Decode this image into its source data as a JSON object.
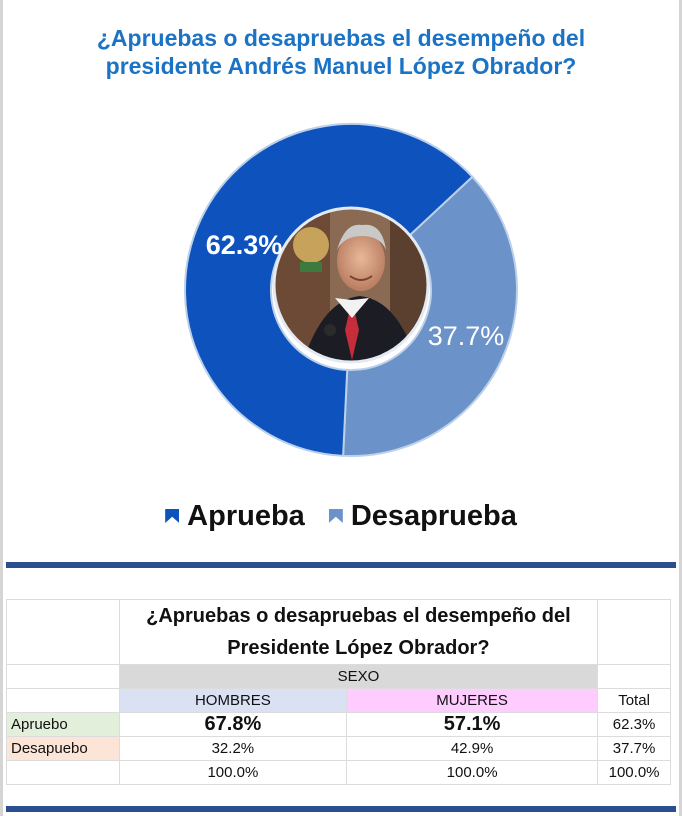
{
  "title": "¿Apruebas o desapruebas el desempeño del presidente Andrés Manuel López Obrador?",
  "chart_data": {
    "type": "pie",
    "variant": "donut",
    "categories": [
      "Aprueba",
      "Desaprueba"
    ],
    "values": [
      62.3,
      37.7
    ],
    "value_labels": [
      "62.3%",
      "37.7%"
    ],
    "colors": [
      "#0d52bd",
      "#6b93c9"
    ],
    "legend_position": "bottom",
    "center_image": "president-photo"
  },
  "legend": {
    "items": [
      {
        "label": "Aprueba",
        "color": "#0d52bd"
      },
      {
        "label": "Desaprueba",
        "color": "#6b93c9"
      }
    ]
  },
  "table": {
    "question": "¿Apruebas o desapruebas el desempeño del Presidente López Obrador?",
    "group_header": "SEXO",
    "columns": [
      "HOMBRES",
      "MUJERES",
      "Total"
    ],
    "rows": [
      {
        "label": "Apruebo",
        "values": [
          "67.8%",
          "57.1%",
          "62.3%"
        ]
      },
      {
        "label": "Desapuebo",
        "values": [
          "32.2%",
          "42.9%",
          "37.7%"
        ]
      },
      {
        "label": "",
        "values": [
          "100.0%",
          "100.0%",
          "100.0%"
        ]
      }
    ]
  },
  "colors": {
    "title": "#1a73c4",
    "separator": "#2b4f8e",
    "sexo_bg": "#d9d9d9",
    "hombres_bg": "#d9e1f2",
    "mujeres_bg": "#ffccff",
    "apruebo_bg": "#e2efda",
    "desaprueba_bg": "#fce4d6"
  }
}
